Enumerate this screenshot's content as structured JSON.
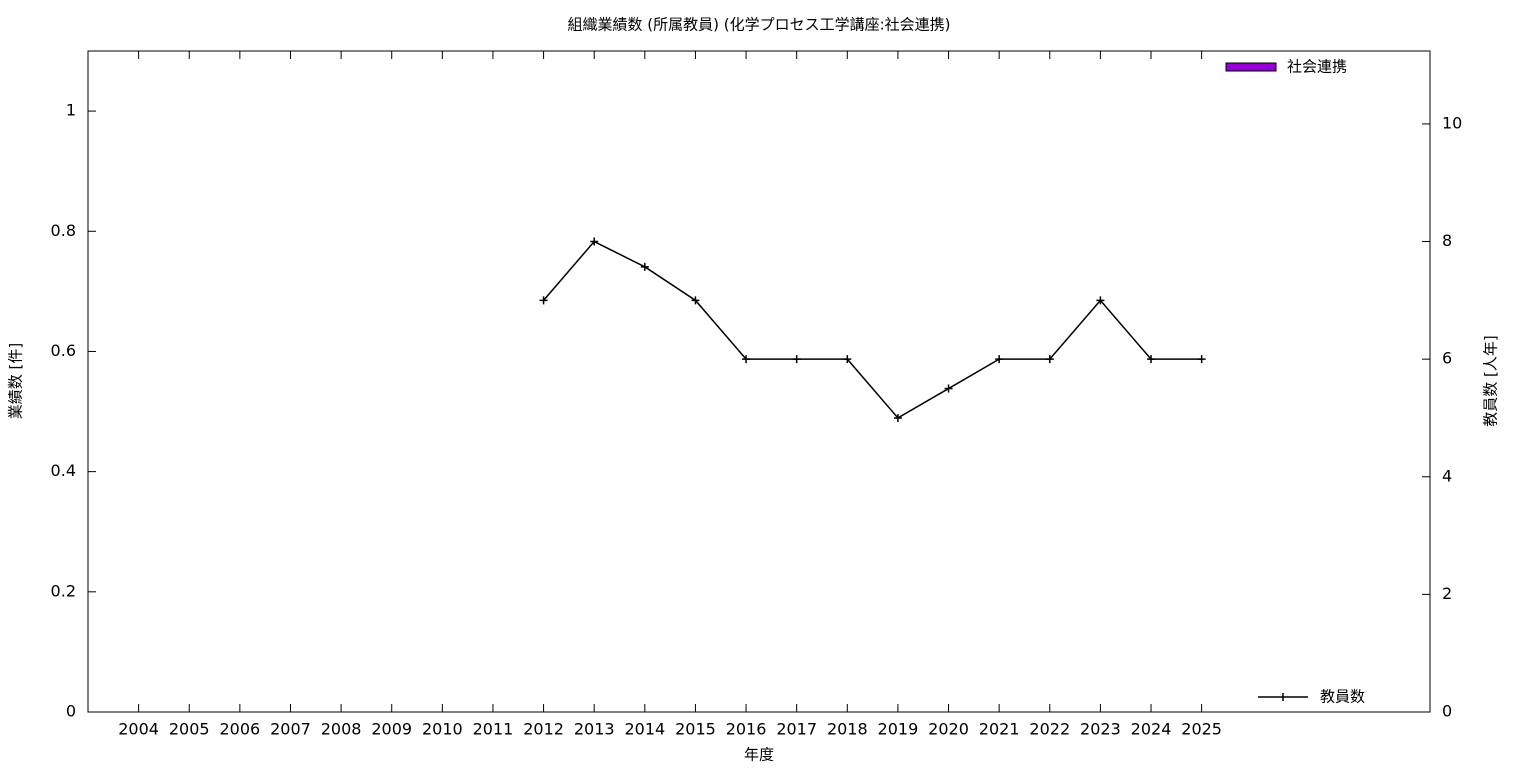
{
  "chart_data": {
    "type": "bar+line",
    "title": "組織業績数 (所属教員) (化学プロセス工学講座:社会連携)",
    "x_label": "年度",
    "y_label": "業績数 [件]",
    "y2_label": "教員数 [人年]",
    "categories": [
      "2004",
      "2005",
      "2006",
      "2007",
      "2008",
      "2009",
      "2010",
      "2011",
      "2012",
      "2013",
      "2014",
      "2015",
      "2016",
      "2017",
      "2018",
      "2019",
      "2020",
      "2021",
      "2022",
      "2023",
      "2024",
      "2025"
    ],
    "series": [
      {
        "name": "社会連携",
        "type": "bar",
        "color": "#9400d3",
        "values": [
          0,
          0,
          0,
          0,
          0,
          0,
          0,
          0,
          0,
          0,
          0,
          0,
          0,
          0,
          0,
          0,
          0,
          0,
          0,
          0,
          0,
          0
        ]
      },
      {
        "name": "教員数",
        "type": "line",
        "axis": "y2",
        "color": "#000000",
        "values": [
          null,
          null,
          null,
          null,
          null,
          null,
          null,
          null,
          7,
          8,
          7.57,
          7,
          6,
          6,
          6,
          5,
          5.5,
          6,
          6,
          7,
          6,
          6
        ]
      }
    ],
    "ylim": [
      0,
      1.1
    ],
    "yticks": [
      0,
      0.2,
      0.4,
      0.6,
      0.8,
      1
    ],
    "y2lim": [
      0,
      11.24
    ],
    "y2ticks": [
      0,
      2,
      4,
      6,
      8,
      10
    ]
  }
}
